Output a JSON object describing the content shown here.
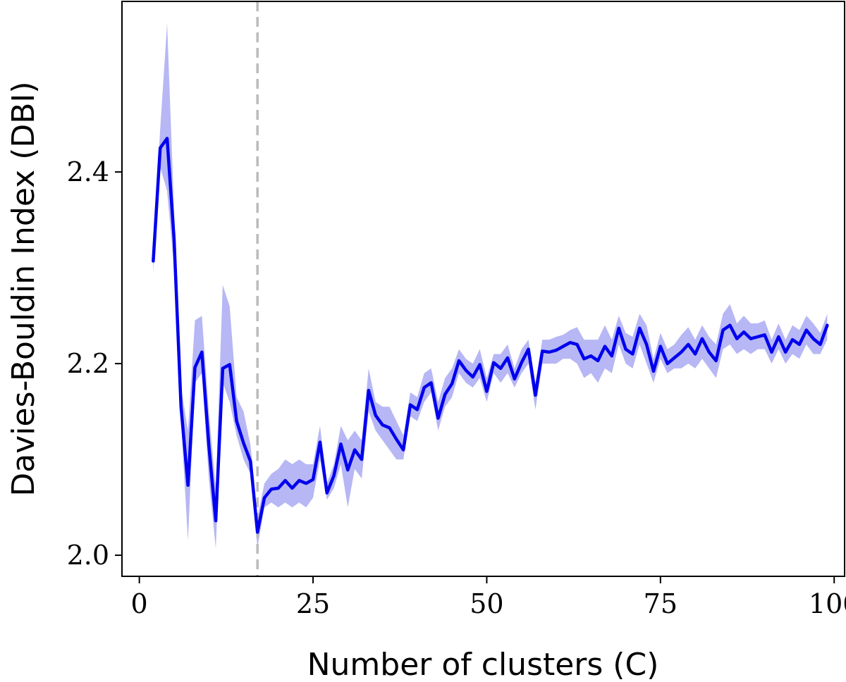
{
  "chart_data": {
    "type": "line",
    "title": "",
    "xlabel": "Number of clusters (C)",
    "ylabel": "Davies-Bouldin Index (DBI)",
    "xlim": [
      -2.5,
      101.5
    ],
    "ylim": [
      1.978,
      2.578
    ],
    "xticks": [
      0,
      25,
      50,
      75,
      100
    ],
    "xtick_labels": [
      "0",
      "25",
      "50",
      "75",
      "100"
    ],
    "yticks": [
      2.0,
      2.2,
      2.4
    ],
    "ytick_labels": [
      "2.0",
      "2.2",
      "2.4"
    ],
    "grid": false,
    "legend": "none",
    "reference_line": {
      "x": 17,
      "style": "dashed",
      "color": "#bbbbbb"
    },
    "series": [
      {
        "color": "#0000ee",
        "band_color": "#b7b7f5",
        "x": [
          2,
          3,
          4,
          5,
          6,
          7,
          8,
          9,
          10,
          11,
          12,
          13,
          14,
          15,
          16,
          17,
          18,
          19,
          20,
          21,
          22,
          23,
          24,
          25,
          26,
          27,
          28,
          29,
          30,
          31,
          32,
          33,
          34,
          35,
          36,
          37,
          38,
          39,
          40,
          41,
          42,
          43,
          44,
          45,
          46,
          47,
          48,
          49,
          50,
          51,
          52,
          53,
          54,
          55,
          56,
          57,
          58,
          59,
          60,
          61,
          62,
          63,
          64,
          65,
          66,
          67,
          68,
          69,
          70,
          71,
          72,
          73,
          74,
          75,
          76,
          77,
          78,
          79,
          80,
          81,
          82,
          83,
          84,
          85,
          86,
          87,
          88,
          89,
          90,
          91,
          92,
          93,
          94,
          95,
          96,
          97,
          98,
          99
        ],
        "y": [
          2.307,
          2.425,
          2.435,
          2.33,
          2.155,
          2.073,
          2.196,
          2.212,
          2.115,
          2.036,
          2.195,
          2.199,
          2.14,
          2.117,
          2.098,
          2.024,
          2.06,
          2.069,
          2.07,
          2.078,
          2.07,
          2.078,
          2.075,
          2.079,
          2.118,
          2.065,
          2.083,
          2.116,
          2.089,
          2.11,
          2.1,
          2.172,
          2.146,
          2.136,
          2.133,
          2.121,
          2.11,
          2.157,
          2.152,
          2.175,
          2.18,
          2.143,
          2.168,
          2.179,
          2.203,
          2.193,
          2.186,
          2.199,
          2.171,
          2.201,
          2.195,
          2.206,
          2.184,
          2.201,
          2.215,
          2.167,
          2.213,
          2.212,
          2.214,
          2.218,
          2.222,
          2.22,
          2.205,
          2.208,
          2.203,
          2.218,
          2.208,
          2.237,
          2.215,
          2.21,
          2.237,
          2.22,
          2.192,
          2.218,
          2.2,
          2.206,
          2.212,
          2.22,
          2.21,
          2.226,
          2.212,
          2.203,
          2.235,
          2.24,
          2.226,
          2.233,
          2.226,
          2.228,
          2.23,
          2.212,
          2.228,
          2.212,
          2.225,
          2.22,
          2.235,
          2.226,
          2.22,
          2.24
        ],
        "lower": [
          2.295,
          2.405,
          2.38,
          2.3,
          2.14,
          2.015,
          2.18,
          2.19,
          2.08,
          2.007,
          2.18,
          2.16,
          2.125,
          2.1,
          2.085,
          2.008,
          2.05,
          2.055,
          2.05,
          2.055,
          2.05,
          2.055,
          2.05,
          2.06,
          2.1,
          2.058,
          2.07,
          2.095,
          2.05,
          2.09,
          2.08,
          2.15,
          2.13,
          2.12,
          2.11,
          2.1,
          2.1,
          2.145,
          2.14,
          2.16,
          2.17,
          2.13,
          2.155,
          2.165,
          2.19,
          2.18,
          2.175,
          2.185,
          2.16,
          2.19,
          2.18,
          2.19,
          2.175,
          2.19,
          2.2,
          2.152,
          2.2,
          2.2,
          2.2,
          2.205,
          2.205,
          2.2,
          2.185,
          2.19,
          2.18,
          2.195,
          2.19,
          2.22,
          2.2,
          2.195,
          2.22,
          2.2,
          2.18,
          2.205,
          2.19,
          2.195,
          2.195,
          2.2,
          2.195,
          2.205,
          2.195,
          2.185,
          2.215,
          2.22,
          2.21,
          2.215,
          2.21,
          2.215,
          2.215,
          2.2,
          2.215,
          2.2,
          2.21,
          2.205,
          2.22,
          2.21,
          2.21,
          2.225
        ],
        "upper": [
          2.32,
          2.445,
          2.555,
          2.36,
          2.175,
          2.13,
          2.245,
          2.25,
          2.15,
          2.07,
          2.282,
          2.26,
          2.165,
          2.15,
          2.115,
          2.04,
          2.075,
          2.085,
          2.09,
          2.1,
          2.095,
          2.1,
          2.095,
          2.095,
          2.135,
          2.075,
          2.095,
          2.135,
          2.12,
          2.13,
          2.12,
          2.195,
          2.16,
          2.155,
          2.155,
          2.14,
          2.125,
          2.17,
          2.165,
          2.19,
          2.195,
          2.16,
          2.185,
          2.195,
          2.215,
          2.205,
          2.2,
          2.215,
          2.185,
          2.21,
          2.21,
          2.22,
          2.195,
          2.215,
          2.225,
          2.18,
          2.225,
          2.225,
          2.228,
          2.23,
          2.235,
          2.238,
          2.225,
          2.225,
          2.225,
          2.24,
          2.225,
          2.25,
          2.232,
          2.228,
          2.252,
          2.24,
          2.205,
          2.232,
          2.215,
          2.22,
          2.23,
          2.238,
          2.225,
          2.24,
          2.228,
          2.22,
          2.252,
          2.262,
          2.242,
          2.25,
          2.242,
          2.242,
          2.245,
          2.225,
          2.242,
          2.225,
          2.24,
          2.235,
          2.25,
          2.242,
          2.232,
          2.252
        ]
      }
    ]
  }
}
